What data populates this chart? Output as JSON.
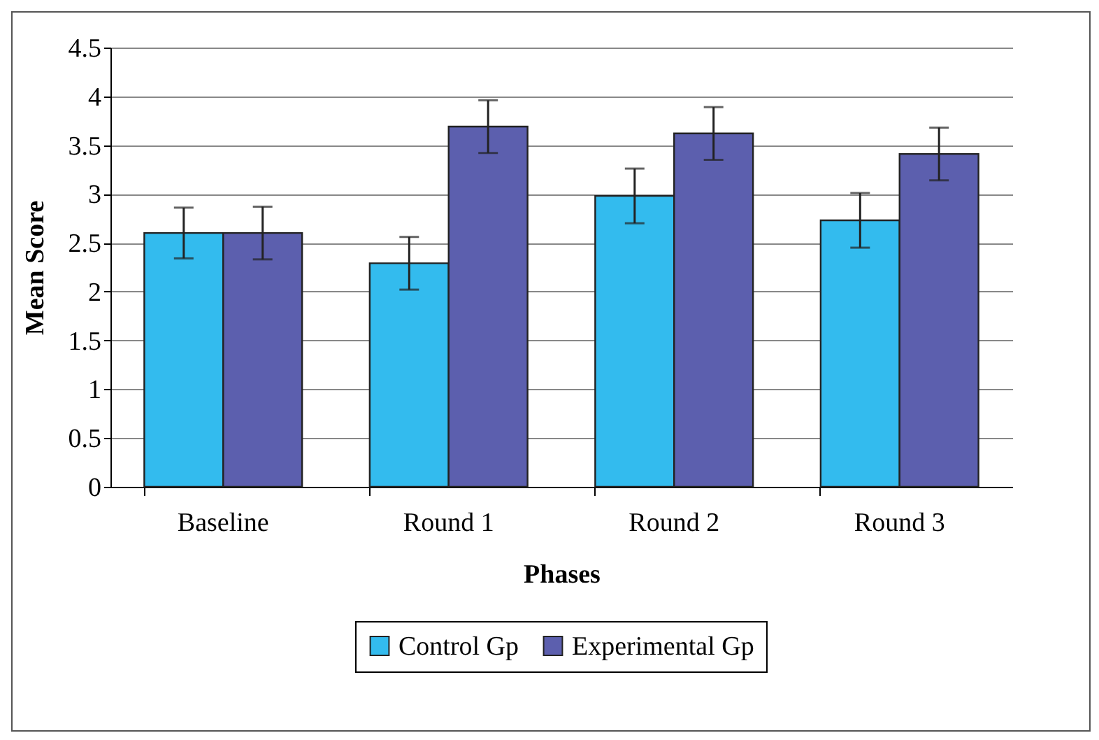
{
  "chart_data": {
    "type": "bar",
    "xlabel": "Phases",
    "ylabel": "Mean Score",
    "categories": [
      "Baseline",
      "Round 1",
      "Round 2",
      "Round 3"
    ],
    "series": [
      {
        "name": "Control Gp",
        "color": "#33bbee",
        "values": [
          2.6,
          2.29,
          2.98,
          2.73
        ],
        "errors": [
          0.26,
          0.27,
          0.28,
          0.28
        ]
      },
      {
        "name": "Experimental Gp",
        "color": "#5c5fae",
        "values": [
          2.6,
          3.69,
          3.62,
          3.41
        ],
        "errors": [
          0.27,
          0.27,
          0.27,
          0.27
        ]
      }
    ],
    "ylim": [
      0,
      4.5
    ],
    "yticks": [
      0,
      0.5,
      1,
      1.5,
      2,
      2.5,
      3,
      3.5,
      4,
      4.5
    ],
    "grid": "y",
    "legend": "bottom"
  }
}
